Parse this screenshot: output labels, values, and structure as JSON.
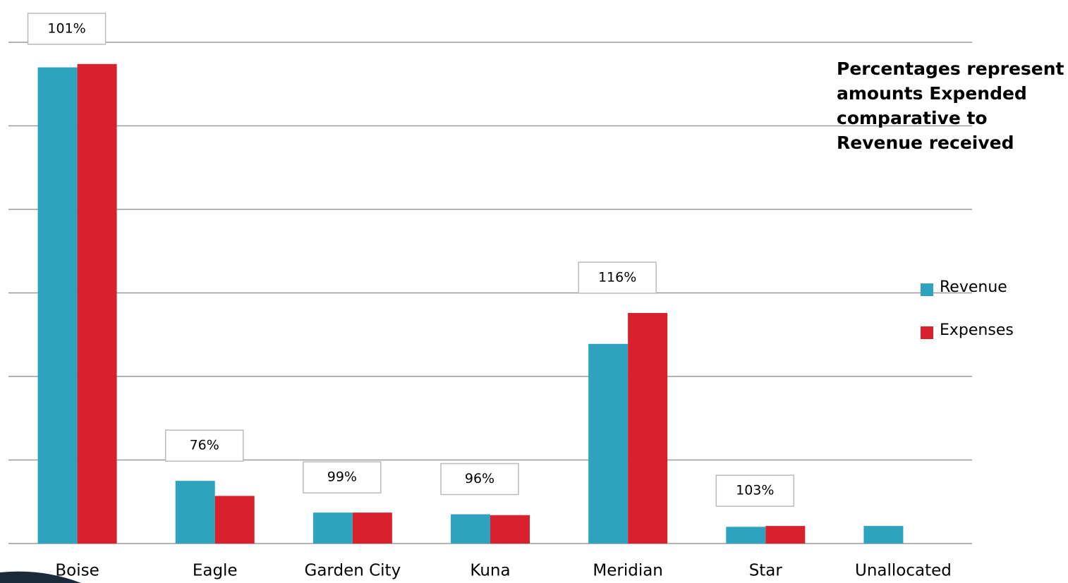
{
  "chart_data": {
    "type": "bar",
    "categories": [
      "Boise",
      "Eagle",
      "Garden City",
      "Kuna",
      "Meridian",
      "Star",
      "Unallocated"
    ],
    "series": [
      {
        "name": "Revenue",
        "color": "#2ea3c0",
        "values": [
          5.7,
          0.75,
          0.37,
          0.35,
          2.39,
          0.2,
          0.21
        ]
      },
      {
        "name": "Expenses",
        "color": "#d9212d",
        "values": [
          5.74,
          0.57,
          0.37,
          0.34,
          2.76,
          0.21,
          null
        ]
      }
    ],
    "ratio_labels": [
      "101%",
      "76%",
      "99%",
      "96%",
      "116%",
      "103%",
      null
    ],
    "note": [
      "Percentages represent",
      "amounts Expended",
      "comparative to",
      "Revenue received"
    ],
    "ylim": [
      0,
      6
    ],
    "yticks": [
      0,
      1,
      2,
      3,
      4,
      5,
      6
    ],
    "grid": true,
    "legend": "right"
  }
}
